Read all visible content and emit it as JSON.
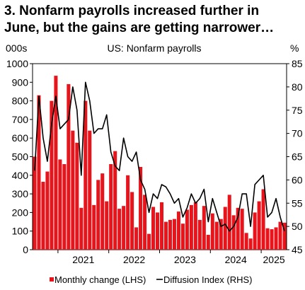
{
  "chart_data": {
    "type": "bar+line",
    "title_lines": [
      "3. Nonfarm payrolls increased further in",
      "June, but the gains are getting narrower…"
    ],
    "subtitle": "US: Nonfarm payrolls",
    "left_unit": "000s",
    "right_unit": "%",
    "left_ylim": [
      0,
      1000
    ],
    "right_ylim": [
      45,
      85
    ],
    "left_ticks": [
      0,
      100,
      200,
      300,
      400,
      500,
      600,
      700,
      800,
      900,
      1000
    ],
    "right_ticks": [
      45,
      50,
      55,
      60,
      65,
      70,
      75,
      80,
      85
    ],
    "x_tick_labels": [
      "2021",
      "2022",
      "2023",
      "2024",
      "2025"
    ],
    "x_start": "2020-07",
    "x_end": "2025-06",
    "bar_color": "#e8141c",
    "line_color": "#000000",
    "series": [
      {
        "name": "Monthly change (LHS)",
        "axis": "left",
        "values": [
          500,
          830,
          365,
          420,
          800,
          935,
          485,
          460,
          890,
          640,
          575,
          225,
          800,
          640,
          240,
          375,
          410,
          260,
          460,
          530,
          220,
          235,
          400,
          310,
          120,
          445,
          295,
          85,
          230,
          200,
          255,
          150,
          160,
          165,
          205,
          140,
          215,
          240,
          255,
          160,
          235,
          80,
          195,
          150,
          165,
          230,
          295,
          185,
          225,
          220,
          90,
          60,
          200,
          260,
          325,
          115,
          110,
          120,
          150,
          145
        ]
      },
      {
        "name": "Diffusion Index (RHS)",
        "axis": "right",
        "values": [
          62,
          78,
          69,
          64,
          72,
          78,
          71,
          72,
          73,
          80,
          75,
          61,
          81,
          77,
          70,
          71,
          71,
          74,
          66,
          63,
          62,
          69,
          65,
          64,
          66,
          60,
          58,
          53,
          57,
          56,
          59,
          58.5,
          57,
          55,
          56,
          52,
          54,
          57,
          55,
          56,
          58,
          51,
          56,
          53,
          50,
          50.5,
          49,
          50,
          52,
          57,
          57,
          50,
          59,
          60,
          61,
          52,
          53,
          56,
          52,
          49
        ]
      }
    ],
    "legend_position": "bottom",
    "gridlines": false
  }
}
